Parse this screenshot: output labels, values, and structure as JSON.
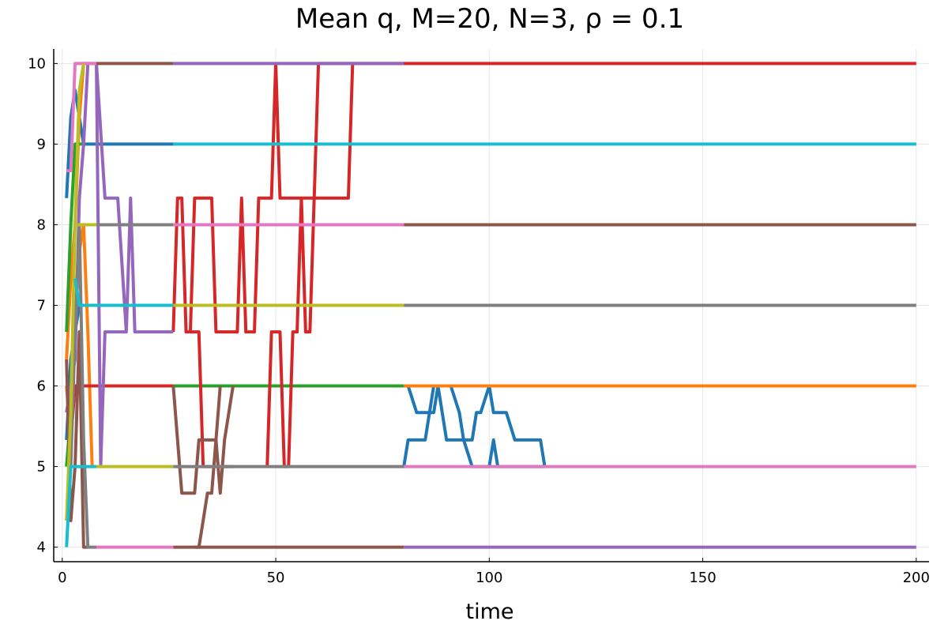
{
  "chart_data": {
    "type": "line",
    "title": "Mean q, M=20, N=3, ρ = 0.1",
    "xlabel": "time",
    "ylabel": "",
    "xlim": [
      -2,
      203
    ],
    "ylim": [
      3.82,
      10.18
    ],
    "xticks": [
      0,
      50,
      100,
      150,
      200
    ],
    "yticks": [
      4,
      5,
      6,
      7,
      8,
      9,
      10
    ],
    "grid": true,
    "legend": "none",
    "line_width": 4,
    "series": [
      {
        "color": "#1f77b4",
        "points": [
          [
            1,
            8.33
          ],
          [
            2,
            9.33
          ],
          [
            3,
            9.67
          ],
          [
            4,
            9.33
          ],
          [
            5,
            9
          ],
          [
            26,
            9
          ]
        ]
      },
      {
        "color": "#1f77b4",
        "points": [
          [
            1,
            5.33
          ],
          [
            2,
            6.33
          ],
          [
            3,
            6.67
          ],
          [
            4,
            7
          ],
          [
            5,
            7
          ]
        ]
      },
      {
        "color": "#1f77b4",
        "points": [
          [
            80,
            5
          ],
          [
            81,
            5.33
          ],
          [
            85,
            5.33
          ],
          [
            87,
            6
          ],
          [
            88,
            6
          ],
          [
            90,
            5.33
          ],
          [
            94,
            5.33
          ],
          [
            96,
            5
          ],
          [
            100,
            5
          ],
          [
            101,
            5.33
          ],
          [
            102,
            5
          ],
          [
            113,
            5
          ]
        ]
      },
      {
        "color": "#1f77b4",
        "points": [
          [
            81,
            6
          ],
          [
            83,
            5.67
          ],
          [
            87,
            5.67
          ],
          [
            88,
            6
          ],
          [
            91,
            6
          ],
          [
            93,
            5.67
          ],
          [
            94,
            5.33
          ],
          [
            96,
            5.33
          ],
          [
            97,
            5.67
          ],
          [
            98,
            5.67
          ],
          [
            100,
            6
          ],
          [
            101,
            5.67
          ],
          [
            104,
            5.67
          ],
          [
            106,
            5.33
          ],
          [
            112,
            5.33
          ],
          [
            113,
            5
          ]
        ]
      },
      {
        "color": "#ff7f0e",
        "points": [
          [
            1,
            6.33
          ],
          [
            2,
            7.33
          ],
          [
            3,
            8
          ],
          [
            4,
            9.33
          ],
          [
            5,
            10
          ],
          [
            6,
            10
          ]
        ]
      },
      {
        "color": "#ff7f0e",
        "points": [
          [
            1,
            6
          ],
          [
            2,
            5.33
          ],
          [
            3,
            6.67
          ],
          [
            4,
            7.67
          ],
          [
            5,
            8
          ],
          [
            6,
            6.67
          ],
          [
            7,
            5
          ]
        ]
      },
      {
        "color": "#ff7f0e",
        "points": [
          [
            80,
            6
          ],
          [
            200,
            6
          ]
        ]
      },
      {
        "color": "#2ca02c",
        "points": [
          [
            1,
            6.67
          ],
          [
            2,
            8
          ],
          [
            3,
            9
          ],
          [
            4,
            9
          ],
          [
            5,
            9
          ]
        ]
      },
      {
        "color": "#2ca02c",
        "points": [
          [
            1,
            5
          ],
          [
            2,
            5.67
          ],
          [
            3,
            6
          ],
          [
            4,
            6
          ],
          [
            8,
            6
          ],
          [
            80,
            6
          ]
        ]
      },
      {
        "color": "#d62728",
        "points": [
          [
            2,
            5.33
          ],
          [
            3,
            6
          ],
          [
            4,
            6
          ],
          [
            26,
            6
          ]
        ]
      },
      {
        "color": "#d62728",
        "points": [
          [
            26,
            6.67
          ],
          [
            27,
            8.33
          ],
          [
            28,
            8.33
          ],
          [
            29,
            6.67
          ],
          [
            30,
            6.67
          ],
          [
            31,
            8.33
          ],
          [
            35,
            8.33
          ],
          [
            36,
            6.67
          ],
          [
            41,
            6.67
          ],
          [
            42,
            8.33
          ],
          [
            43,
            6.67
          ],
          [
            45,
            6.67
          ],
          [
            46,
            8.33
          ],
          [
            48,
            8.33
          ],
          [
            49,
            8.33
          ],
          [
            50,
            10
          ],
          [
            51,
            8.33
          ],
          [
            56,
            8.33
          ],
          [
            57,
            6.67
          ],
          [
            58,
            6.67
          ],
          [
            59,
            8.33
          ],
          [
            67,
            8.33
          ],
          [
            68,
            10
          ],
          [
            200,
            10
          ]
        ]
      },
      {
        "color": "#d62728",
        "points": [
          [
            30,
            6.67
          ],
          [
            32,
            6.67
          ],
          [
            33,
            5
          ],
          [
            40,
            5
          ]
        ]
      },
      {
        "color": "#d62728",
        "points": [
          [
            48,
            5
          ],
          [
            49,
            6.67
          ],
          [
            51,
            6.67
          ],
          [
            52,
            5
          ],
          [
            53,
            5
          ],
          [
            54,
            6.67
          ],
          [
            55,
            6.67
          ],
          [
            56,
            8.33
          ],
          [
            59,
            8.33
          ],
          [
            60,
            10
          ],
          [
            68,
            10
          ]
        ]
      },
      {
        "color": "#9467bd",
        "points": [
          [
            1,
            5.67
          ],
          [
            2,
            6
          ],
          [
            3,
            6.33
          ],
          [
            4,
            8.33
          ],
          [
            5,
            9
          ],
          [
            6,
            10
          ],
          [
            8,
            10
          ],
          [
            10,
            8.33
          ],
          [
            13,
            8.33
          ],
          [
            15,
            6.67
          ],
          [
            16,
            8.33
          ],
          [
            17,
            6.67
          ],
          [
            18,
            6.67
          ],
          [
            26,
            6.67
          ]
        ]
      },
      {
        "color": "#9467bd",
        "points": [
          [
            8,
            10
          ],
          [
            9,
            5
          ],
          [
            10,
            6.67
          ],
          [
            15,
            6.67
          ]
        ]
      },
      {
        "color": "#9467bd",
        "points": [
          [
            26,
            10
          ],
          [
            80,
            10
          ]
        ]
      },
      {
        "color": "#9467bd",
        "points": [
          [
            80,
            4
          ],
          [
            200,
            4
          ]
        ]
      },
      {
        "color": "#8c564b",
        "points": [
          [
            1,
            6.33
          ],
          [
            2,
            4.33
          ],
          [
            3,
            5
          ],
          [
            4,
            6.67
          ],
          [
            5,
            4
          ],
          [
            6,
            4
          ]
        ]
      },
      {
        "color": "#8c564b",
        "points": [
          [
            8,
            10
          ],
          [
            26,
            10
          ]
        ]
      },
      {
        "color": "#8c564b",
        "points": [
          [
            26,
            6
          ],
          [
            27,
            5.33
          ],
          [
            28,
            4.67
          ],
          [
            31,
            4.67
          ],
          [
            32,
            5.33
          ],
          [
            36,
            5.33
          ],
          [
            37,
            4.67
          ],
          [
            38,
            5.33
          ],
          [
            40,
            6
          ]
        ]
      },
      {
        "color": "#8c564b",
        "points": [
          [
            31,
            4
          ],
          [
            32,
            4
          ],
          [
            33,
            4.33
          ],
          [
            34,
            4.67
          ],
          [
            35,
            4.67
          ],
          [
            36,
            5.33
          ],
          [
            37,
            6
          ]
        ]
      },
      {
        "color": "#8c564b",
        "points": [
          [
            26,
            4
          ],
          [
            80,
            4
          ]
        ]
      },
      {
        "color": "#8c564b",
        "points": [
          [
            80,
            8
          ],
          [
            200,
            8
          ]
        ]
      },
      {
        "color": "#e377c2",
        "points": [
          [
            1,
            8.67
          ],
          [
            2,
            8.67
          ],
          [
            3,
            10
          ],
          [
            4,
            10
          ],
          [
            8,
            10
          ]
        ]
      },
      {
        "color": "#e377c2",
        "points": [
          [
            8,
            4
          ],
          [
            26,
            4
          ]
        ]
      },
      {
        "color": "#e377c2",
        "points": [
          [
            26,
            8
          ],
          [
            80,
            8
          ]
        ]
      },
      {
        "color": "#e377c2",
        "points": [
          [
            80,
            5
          ],
          [
            200,
            5
          ]
        ]
      },
      {
        "color": "#7f7f7f",
        "points": [
          [
            1,
            4.33
          ],
          [
            2,
            5
          ],
          [
            3,
            6.67
          ],
          [
            4,
            8
          ],
          [
            5,
            5.33
          ],
          [
            6,
            4
          ],
          [
            8,
            4
          ]
        ]
      },
      {
        "color": "#7f7f7f",
        "points": [
          [
            8,
            8
          ],
          [
            26,
            8
          ]
        ]
      },
      {
        "color": "#7f7f7f",
        "points": [
          [
            26,
            5
          ],
          [
            80,
            5
          ]
        ]
      },
      {
        "color": "#7f7f7f",
        "points": [
          [
            80,
            7
          ],
          [
            200,
            7
          ]
        ]
      },
      {
        "color": "#bcbd22",
        "points": [
          [
            1,
            4.33
          ],
          [
            2,
            5.67
          ],
          [
            3,
            8
          ],
          [
            4,
            9.67
          ],
          [
            5,
            10
          ]
        ]
      },
      {
        "color": "#bcbd22",
        "points": [
          [
            3,
            8
          ],
          [
            8,
            8
          ]
        ]
      },
      {
        "color": "#bcbd22",
        "points": [
          [
            8,
            5
          ],
          [
            26,
            5
          ]
        ]
      },
      {
        "color": "#bcbd22",
        "points": [
          [
            26,
            7
          ],
          [
            80,
            7
          ]
        ]
      },
      {
        "color": "#17becf",
        "points": [
          [
            1,
            4
          ],
          [
            2,
            5
          ],
          [
            8,
            5
          ]
        ]
      },
      {
        "color": "#17becf",
        "points": [
          [
            3,
            7.33
          ],
          [
            4,
            7
          ],
          [
            8,
            7
          ],
          [
            26,
            7
          ]
        ]
      },
      {
        "color": "#17becf",
        "points": [
          [
            26,
            9
          ],
          [
            200,
            9
          ]
        ]
      }
    ]
  }
}
